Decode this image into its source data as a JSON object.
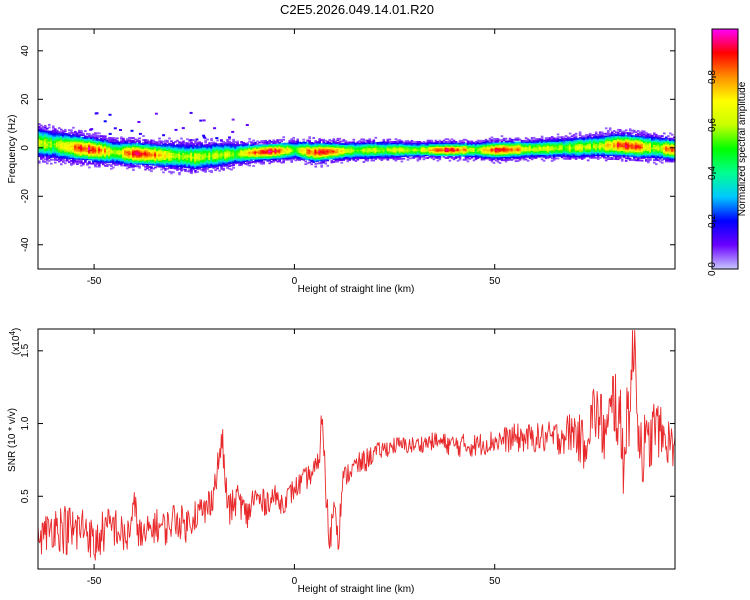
{
  "title": "C2E5.2026.049.14.01.R20",
  "chart_data": [
    {
      "type": "heatmap",
      "id": "spectrogram",
      "xlabel": "Height of straight line (km)",
      "ylabel": "Frequency (Hz)",
      "xlim": [
        -64,
        95
      ],
      "ylim": [
        -50,
        49
      ],
      "xticks": [
        -50,
        0,
        50
      ],
      "yticks": [
        -40,
        -20,
        0,
        20,
        40
      ],
      "grid": false,
      "colorbar": {
        "label": "Normalized spectral amplitude",
        "range": [
          0,
          1
        ],
        "ticks": [
          "0.0",
          "0.2",
          "0.4",
          "0.6",
          "0.8"
        ],
        "tick_values": [
          0.0,
          0.2,
          0.4,
          0.6,
          0.8
        ],
        "colormap": [
          "#c8c8ff",
          "#6a00ff",
          "#0000ff",
          "#00c8ff",
          "#00ff90",
          "#00ff00",
          "#c8ff00",
          "#ffff00",
          "#ff9000",
          "#ff0000",
          "#ff00ff"
        ]
      },
      "ridge": {
        "x": [
          -64,
          -55,
          -45,
          -35,
          -25,
          -18,
          -10,
          -5,
          0,
          5,
          10,
          20,
          30,
          40,
          50,
          60,
          70,
          80,
          90,
          95
        ],
        "y": [
          2,
          0,
          -2,
          -3,
          -4,
          -3,
          -2,
          -1.5,
          -1,
          -2,
          -1.5,
          -1,
          -1,
          -1,
          -1,
          -0.5,
          0,
          1,
          0,
          -1
        ],
        "width_hz": [
          10,
          9,
          8,
          8,
          9,
          8,
          6,
          6,
          6,
          7,
          6,
          6,
          5,
          5,
          6,
          6,
          7,
          8,
          8,
          7
        ]
      }
    },
    {
      "type": "line",
      "id": "snr",
      "xlabel": "Height of straight line (km)",
      "ylabel": "SNR (10 * v/v)",
      "multiplier_label": "(x10",
      "multiplier_exp": "4",
      "xlim": [
        -64,
        95
      ],
      "ylim": [
        0,
        1.65
      ],
      "xticks": [
        -50,
        0,
        50
      ],
      "yticks": [
        "0.5",
        "1.0",
        "1.5"
      ],
      "ytick_values": [
        0.5,
        1.0,
        1.5
      ],
      "color": "#e8282a",
      "series": [
        {
          "x": [
            -64,
            -60,
            -55,
            -52,
            -50,
            -48,
            -45,
            -42,
            -40,
            -38,
            -35,
            -32,
            -30,
            -27,
            -25,
            -22,
            -20,
            -18,
            -17,
            -16,
            -14,
            -12,
            -10,
            -8,
            -5,
            -3,
            0,
            2,
            4,
            6,
            7,
            8,
            9,
            10,
            11,
            12,
            13,
            15,
            18,
            20,
            25,
            30,
            35,
            40,
            45,
            50,
            55,
            60,
            65,
            70,
            72,
            75,
            78,
            80,
            82,
            84,
            85,
            86,
            88,
            90,
            92,
            95
          ],
          "y": [
            0.2,
            0.3,
            0.25,
            0.3,
            0.15,
            0.25,
            0.3,
            0.2,
            0.4,
            0.2,
            0.3,
            0.28,
            0.35,
            0.3,
            0.38,
            0.4,
            0.55,
            0.9,
            0.5,
            0.4,
            0.5,
            0.35,
            0.5,
            0.45,
            0.5,
            0.45,
            0.55,
            0.6,
            0.65,
            0.7,
            1.1,
            0.4,
            0.2,
            0.5,
            0.2,
            0.6,
            0.65,
            0.7,
            0.75,
            0.8,
            0.85,
            0.85,
            0.88,
            0.85,
            0.85,
            0.88,
            0.9,
            0.9,
            0.9,
            0.95,
            0.85,
            1.1,
            0.9,
            1.2,
            0.8,
            1.25,
            1.6,
            0.9,
            0.8,
            1.0,
            0.9,
            0.85
          ],
          "noise": [
            0.12,
            0.15,
            0.2,
            0.15,
            0.15,
            0.15,
            0.15,
            0.12,
            0.15,
            0.12,
            0.12,
            0.12,
            0.12,
            0.12,
            0.12,
            0.12,
            0.12,
            0.1,
            0.15,
            0.12,
            0.1,
            0.12,
            0.1,
            0.1,
            0.08,
            0.08,
            0.08,
            0.08,
            0.08,
            0.1,
            0.1,
            0.15,
            0.15,
            0.1,
            0.1,
            0.08,
            0.08,
            0.08,
            0.08,
            0.06,
            0.06,
            0.06,
            0.06,
            0.08,
            0.08,
            0.08,
            0.1,
            0.1,
            0.12,
            0.15,
            0.18,
            0.22,
            0.25,
            0.3,
            0.32,
            0.3,
            0.28,
            0.28,
            0.25,
            0.2,
            0.18,
            0.15
          ]
        }
      ]
    }
  ]
}
